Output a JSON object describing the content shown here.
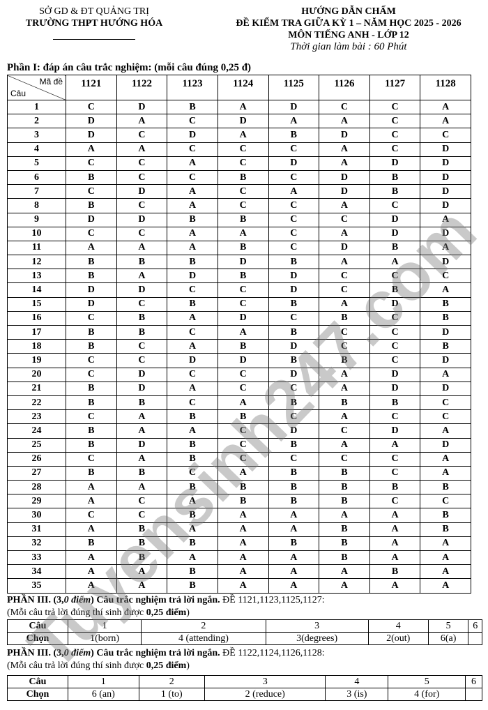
{
  "header_left": {
    "line1": "SỞ GD & ĐT QUẢNG TRỊ",
    "line2": "TRƯỜNG THPT HƯỚNG HÓA"
  },
  "header_right": {
    "line1": "HƯỚNG DẪN CHẤM",
    "line2": "ĐỀ KIỂM TRA GIỮA KỲ 1 – NĂM HỌC 2025 - 2026",
    "line3": "MÔN TIẾNG ANH - LỚP 12",
    "line4": "Thời gian làm bài : 60 Phút"
  },
  "part1": {
    "title": "Phần I:  đáp án câu trắc nghiệm: (mỗi câu đúng 0,25 đ)",
    "corner_top": "Mã đề",
    "corner_bottom": "Câu",
    "codes": [
      "1121",
      "1122",
      "1123",
      "1124",
      "1125",
      "1126",
      "1127",
      "1128"
    ],
    "rows": [
      [
        "1",
        "C",
        "D",
        "B",
        "A",
        "D",
        "C",
        "C",
        "A"
      ],
      [
        "2",
        "D",
        "A",
        "C",
        "D",
        "A",
        "A",
        "C",
        "A"
      ],
      [
        "3",
        "D",
        "C",
        "D",
        "A",
        "B",
        "D",
        "C",
        "C"
      ],
      [
        "4",
        "A",
        "A",
        "C",
        "C",
        "C",
        "A",
        "C",
        "D"
      ],
      [
        "5",
        "C",
        "C",
        "A",
        "C",
        "D",
        "A",
        "D",
        "D"
      ],
      [
        "6",
        "B",
        "C",
        "C",
        "B",
        "C",
        "D",
        "B",
        "D"
      ],
      [
        "7",
        "C",
        "D",
        "A",
        "C",
        "A",
        "D",
        "B",
        "D"
      ],
      [
        "8",
        "B",
        "C",
        "A",
        "C",
        "C",
        "A",
        "C",
        "D"
      ],
      [
        "9",
        "D",
        "D",
        "B",
        "B",
        "C",
        "C",
        "D",
        "A"
      ],
      [
        "10",
        "C",
        "C",
        "A",
        "A",
        "C",
        "A",
        "D",
        "D"
      ],
      [
        "11",
        "A",
        "A",
        "A",
        "B",
        "C",
        "D",
        "B",
        "A"
      ],
      [
        "12",
        "B",
        "B",
        "B",
        "D",
        "B",
        "A",
        "A",
        "D"
      ],
      [
        "13",
        "B",
        "A",
        "D",
        "B",
        "D",
        "C",
        "C",
        "C"
      ],
      [
        "14",
        "D",
        "D",
        "C",
        "C",
        "D",
        "C",
        "B",
        "A"
      ],
      [
        "15",
        "D",
        "C",
        "B",
        "C",
        "B",
        "A",
        "D",
        "B"
      ],
      [
        "16",
        "C",
        "B",
        "A",
        "D",
        "C",
        "B",
        "C",
        "B"
      ],
      [
        "17",
        "B",
        "B",
        "C",
        "A",
        "B",
        "C",
        "C",
        "D"
      ],
      [
        "18",
        "B",
        "C",
        "A",
        "B",
        "D",
        "C",
        "C",
        "B"
      ],
      [
        "19",
        "C",
        "C",
        "D",
        "D",
        "B",
        "B",
        "C",
        "D"
      ],
      [
        "20",
        "C",
        "D",
        "C",
        "C",
        "D",
        "A",
        "D",
        "A"
      ],
      [
        "21",
        "B",
        "D",
        "A",
        "C",
        "C",
        "A",
        "D",
        "D"
      ],
      [
        "22",
        "B",
        "B",
        "C",
        "A",
        "B",
        "B",
        "B",
        "C"
      ],
      [
        "23",
        "C",
        "A",
        "B",
        "B",
        "C",
        "A",
        "C",
        "C"
      ],
      [
        "24",
        "B",
        "A",
        "A",
        "C",
        "D",
        "C",
        "D",
        "A"
      ],
      [
        "25",
        "B",
        "D",
        "B",
        "C",
        "B",
        "A",
        "A",
        "D"
      ],
      [
        "26",
        "C",
        "A",
        "B",
        "C",
        "C",
        "C",
        "C",
        "A"
      ],
      [
        "27",
        "B",
        "B",
        "C",
        "A",
        "B",
        "B",
        "C",
        "A"
      ],
      [
        "28",
        "A",
        "A",
        "B",
        "B",
        "B",
        "B",
        "B",
        "B"
      ],
      [
        "29",
        "A",
        "C",
        "A",
        "B",
        "B",
        "B",
        "C",
        "C"
      ],
      [
        "30",
        "C",
        "C",
        "B",
        "A",
        "A",
        "A",
        "A",
        "B"
      ],
      [
        "31",
        "A",
        "B",
        "A",
        "A",
        "A",
        "B",
        "A",
        "B"
      ],
      [
        "32",
        "B",
        "B",
        "B",
        "A",
        "B",
        "B",
        "A",
        "A"
      ],
      [
        "33",
        "A",
        "B",
        "A",
        "A",
        "A",
        "B",
        "A",
        "A"
      ],
      [
        "34",
        "A",
        "A",
        "B",
        "A",
        "A",
        "A",
        "B",
        "A"
      ],
      [
        "35",
        "A",
        "A",
        "B",
        "A",
        "A",
        "A",
        "A",
        "A"
      ]
    ]
  },
  "part3a": {
    "title_bold": "PHẦN III. (3,",
    "title_italic": "0 điểm",
    ")": ")",
    "title_bold2": " Câu trắc nghiệm trả lời ngắn.",
    "title_rest": " ĐỀ 1121,1123,1125,1127:",
    "note_pre": "(Mỗi câu trả lời đúng thí sinh được ",
    "note_bold": "0,25 điểm",
    "row1_label": "Câu",
    "row2_label": "Chọn",
    "questions": [
      "1",
      "2",
      "3",
      "4",
      "5",
      "6"
    ],
    "answers": [
      "1(born)",
      "4 (attending)",
      "3(degrees)",
      "2(out)",
      "6(a)",
      ""
    ]
  },
  "part3b": {
    "title_bold": "PHẦN III. (3,",
    "title_italic": "0 điểm",
    ")": ")",
    "title_bold2": " Câu trắc nghiệm trả lời ngắn.",
    "title_rest": " ĐỀ 1122,1124,1126,1128:",
    "note_pre": "(Mỗi câu trả lời đúng thí sinh được ",
    "note_bold": "0,25 điểm",
    "row1_label": "Câu",
    "row2_label": "Chọn",
    "questions": [
      "1",
      "2",
      "3",
      "4",
      "5",
      "6"
    ],
    "answers": [
      "6 (an)",
      "1 (to)",
      "2 (reduce)",
      "3 (is)",
      "4 (for)",
      ""
    ]
  },
  "watermark": "Tuyensinh247.com"
}
